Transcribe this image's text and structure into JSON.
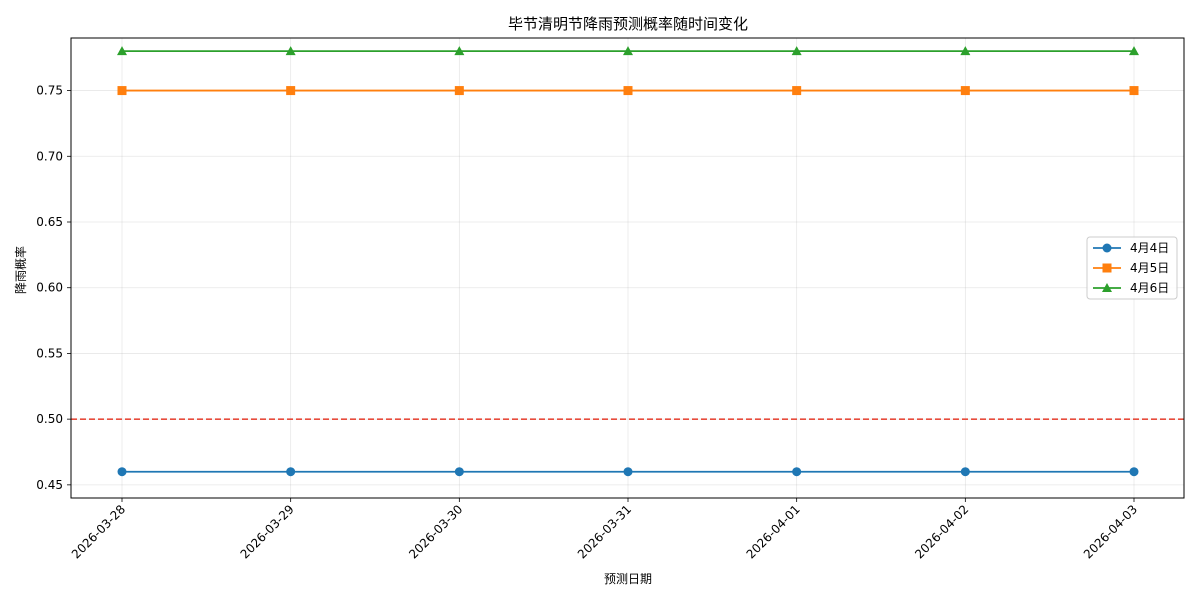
{
  "chart_data": {
    "type": "line",
    "title": "毕节清明节降雨预测概率随时间变化",
    "xlabel": "预测日期",
    "ylabel": "降雨概率",
    "x": [
      "2026-03-28",
      "2026-03-29",
      "2026-03-30",
      "2026-03-31",
      "2026-04-01",
      "2026-04-02",
      "2026-04-03"
    ],
    "ylim": [
      0.44,
      0.79
    ],
    "yticks": [
      "0.45",
      "0.50",
      "0.55",
      "0.60",
      "0.65",
      "0.70",
      "0.75"
    ],
    "grid": true,
    "legend_position": "right",
    "reference_line": {
      "y": 0.5,
      "color": "#e74c3c",
      "style": "dashed"
    },
    "series": [
      {
        "name": "4月4日",
        "values": [
          0.46,
          0.46,
          0.46,
          0.46,
          0.46,
          0.46,
          0.46
        ],
        "color": "#1f77b4",
        "marker": "circle"
      },
      {
        "name": "4月5日",
        "values": [
          0.75,
          0.75,
          0.75,
          0.75,
          0.75,
          0.75,
          0.75
        ],
        "color": "#ff7f0e",
        "marker": "square"
      },
      {
        "name": "4月6日",
        "values": [
          0.78,
          0.78,
          0.78,
          0.78,
          0.78,
          0.78,
          0.78
        ],
        "color": "#2ca02c",
        "marker": "triangle"
      }
    ]
  }
}
